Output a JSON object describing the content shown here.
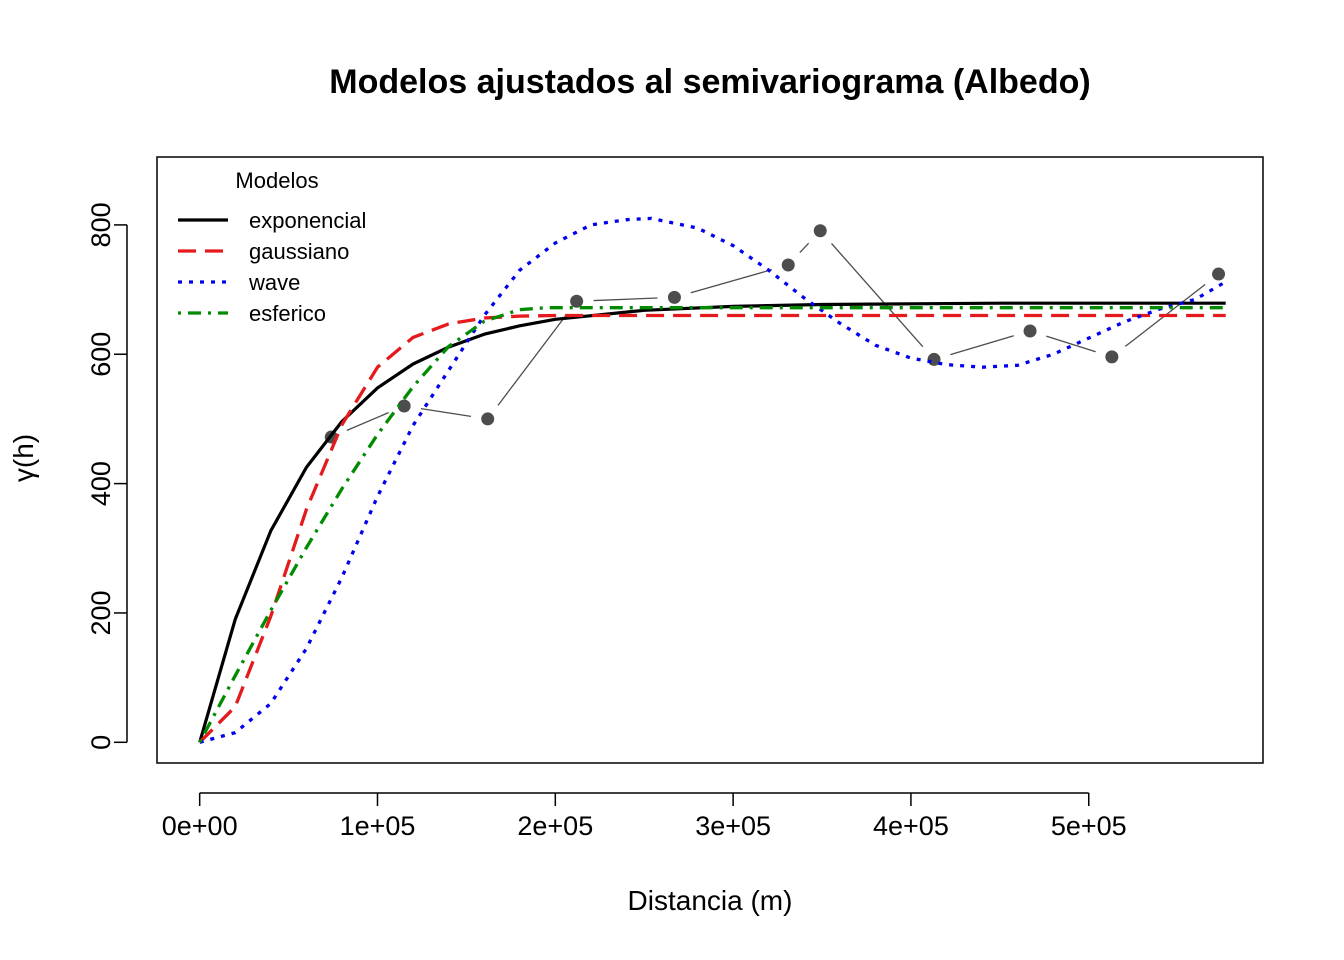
{
  "chart_data": {
    "type": "line",
    "title": "Modelos ajustados al semivariograma (Albedo)",
    "xlabel": "Distancia (m)",
    "ylabel": "γ(h)",
    "xlim": [
      -24000,
      598000
    ],
    "ylim": [
      -32000,
      905000
    ],
    "ylim_units": [
      -32,
      905
    ],
    "x_ticks": [
      0,
      100000,
      200000,
      300000,
      400000,
      500000
    ],
    "x_tick_labels": [
      "0e+00",
      "1e+05",
      "2e+05",
      "3e+05",
      "4e+05",
      "5e+05"
    ],
    "y_ticks": [
      0,
      200,
      400,
      600,
      800
    ],
    "y_tick_labels": [
      "0",
      "200",
      "400",
      "600",
      "800"
    ],
    "grid": false,
    "legend": {
      "title": "Modelos",
      "placement": "top-left"
    },
    "empirical": {
      "x": [
        74000,
        115000,
        162000,
        212000,
        267000,
        331000,
        349000,
        413000,
        467000,
        513000,
        573000
      ],
      "y": [
        472,
        520,
        500,
        682,
        688,
        738,
        791,
        592,
        636,
        596,
        724
      ],
      "color": "#4d4d4d"
    },
    "series": [
      {
        "name": "exponencial",
        "color": "#000000",
        "dash": "solid",
        "model": "exp",
        "nugget": 0,
        "sill": 680,
        "range": 61000,
        "x": [
          0,
          20000,
          40000,
          60000,
          80000,
          100000,
          120000,
          140000,
          160000,
          180000,
          200000,
          250000,
          300000,
          350000,
          400000,
          450000,
          500000,
          577000
        ],
        "y": [
          0,
          190,
          327,
          425,
          496,
          548,
          585,
          611,
          631,
          644,
          654,
          668,
          674,
          677,
          678,
          679,
          679,
          679
        ]
      },
      {
        "name": "gaussiano",
        "color": "#e41a1c",
        "dash": "dashed",
        "model": "gau",
        "nugget": 0,
        "sill": 660,
        "range": 68000,
        "x": [
          0,
          20000,
          40000,
          60000,
          80000,
          100000,
          120000,
          140000,
          160000,
          180000,
          200000,
          250000,
          300000,
          400000,
          500000,
          577000
        ],
        "y": [
          0,
          55,
          195,
          360,
          491,
          580,
          626,
          647,
          656,
          659,
          660,
          660,
          660,
          660,
          660,
          660
        ]
      },
      {
        "name": "wave",
        "color": "#0000ee",
        "dash": "dotted",
        "model": "wav",
        "x": [
          0,
          20000,
          40000,
          60000,
          80000,
          100000,
          120000,
          140000,
          160000,
          180000,
          200000,
          220000,
          240000,
          254000,
          280000,
          300000,
          320000,
          340000,
          360000,
          380000,
          400000,
          420000,
          440000,
          460000,
          480000,
          500000,
          520000,
          540000,
          560000,
          577000
        ],
        "y": [
          0,
          15,
          60,
          145,
          255,
          380,
          490,
          575,
          660,
          730,
          772,
          800,
          808,
          810,
          795,
          768,
          730,
          687,
          648,
          614,
          594,
          584,
          580,
          583,
          600,
          625,
          650,
          670,
          685,
          712
        ]
      },
      {
        "name": "esferico",
        "color": "#008b00",
        "dash": "dashdot",
        "model": "sph",
        "nugget": 0,
        "sill": 672,
        "range": 195000,
        "x": [
          0,
          20000,
          40000,
          60000,
          80000,
          100000,
          120000,
          140000,
          160000,
          180000,
          195000,
          300000,
          400000,
          500000,
          577000
        ],
        "y": [
          0,
          103,
          204,
          301,
          392,
          476,
          550,
          612,
          651,
          669,
          672,
          672,
          672,
          672,
          672
        ]
      }
    ]
  }
}
